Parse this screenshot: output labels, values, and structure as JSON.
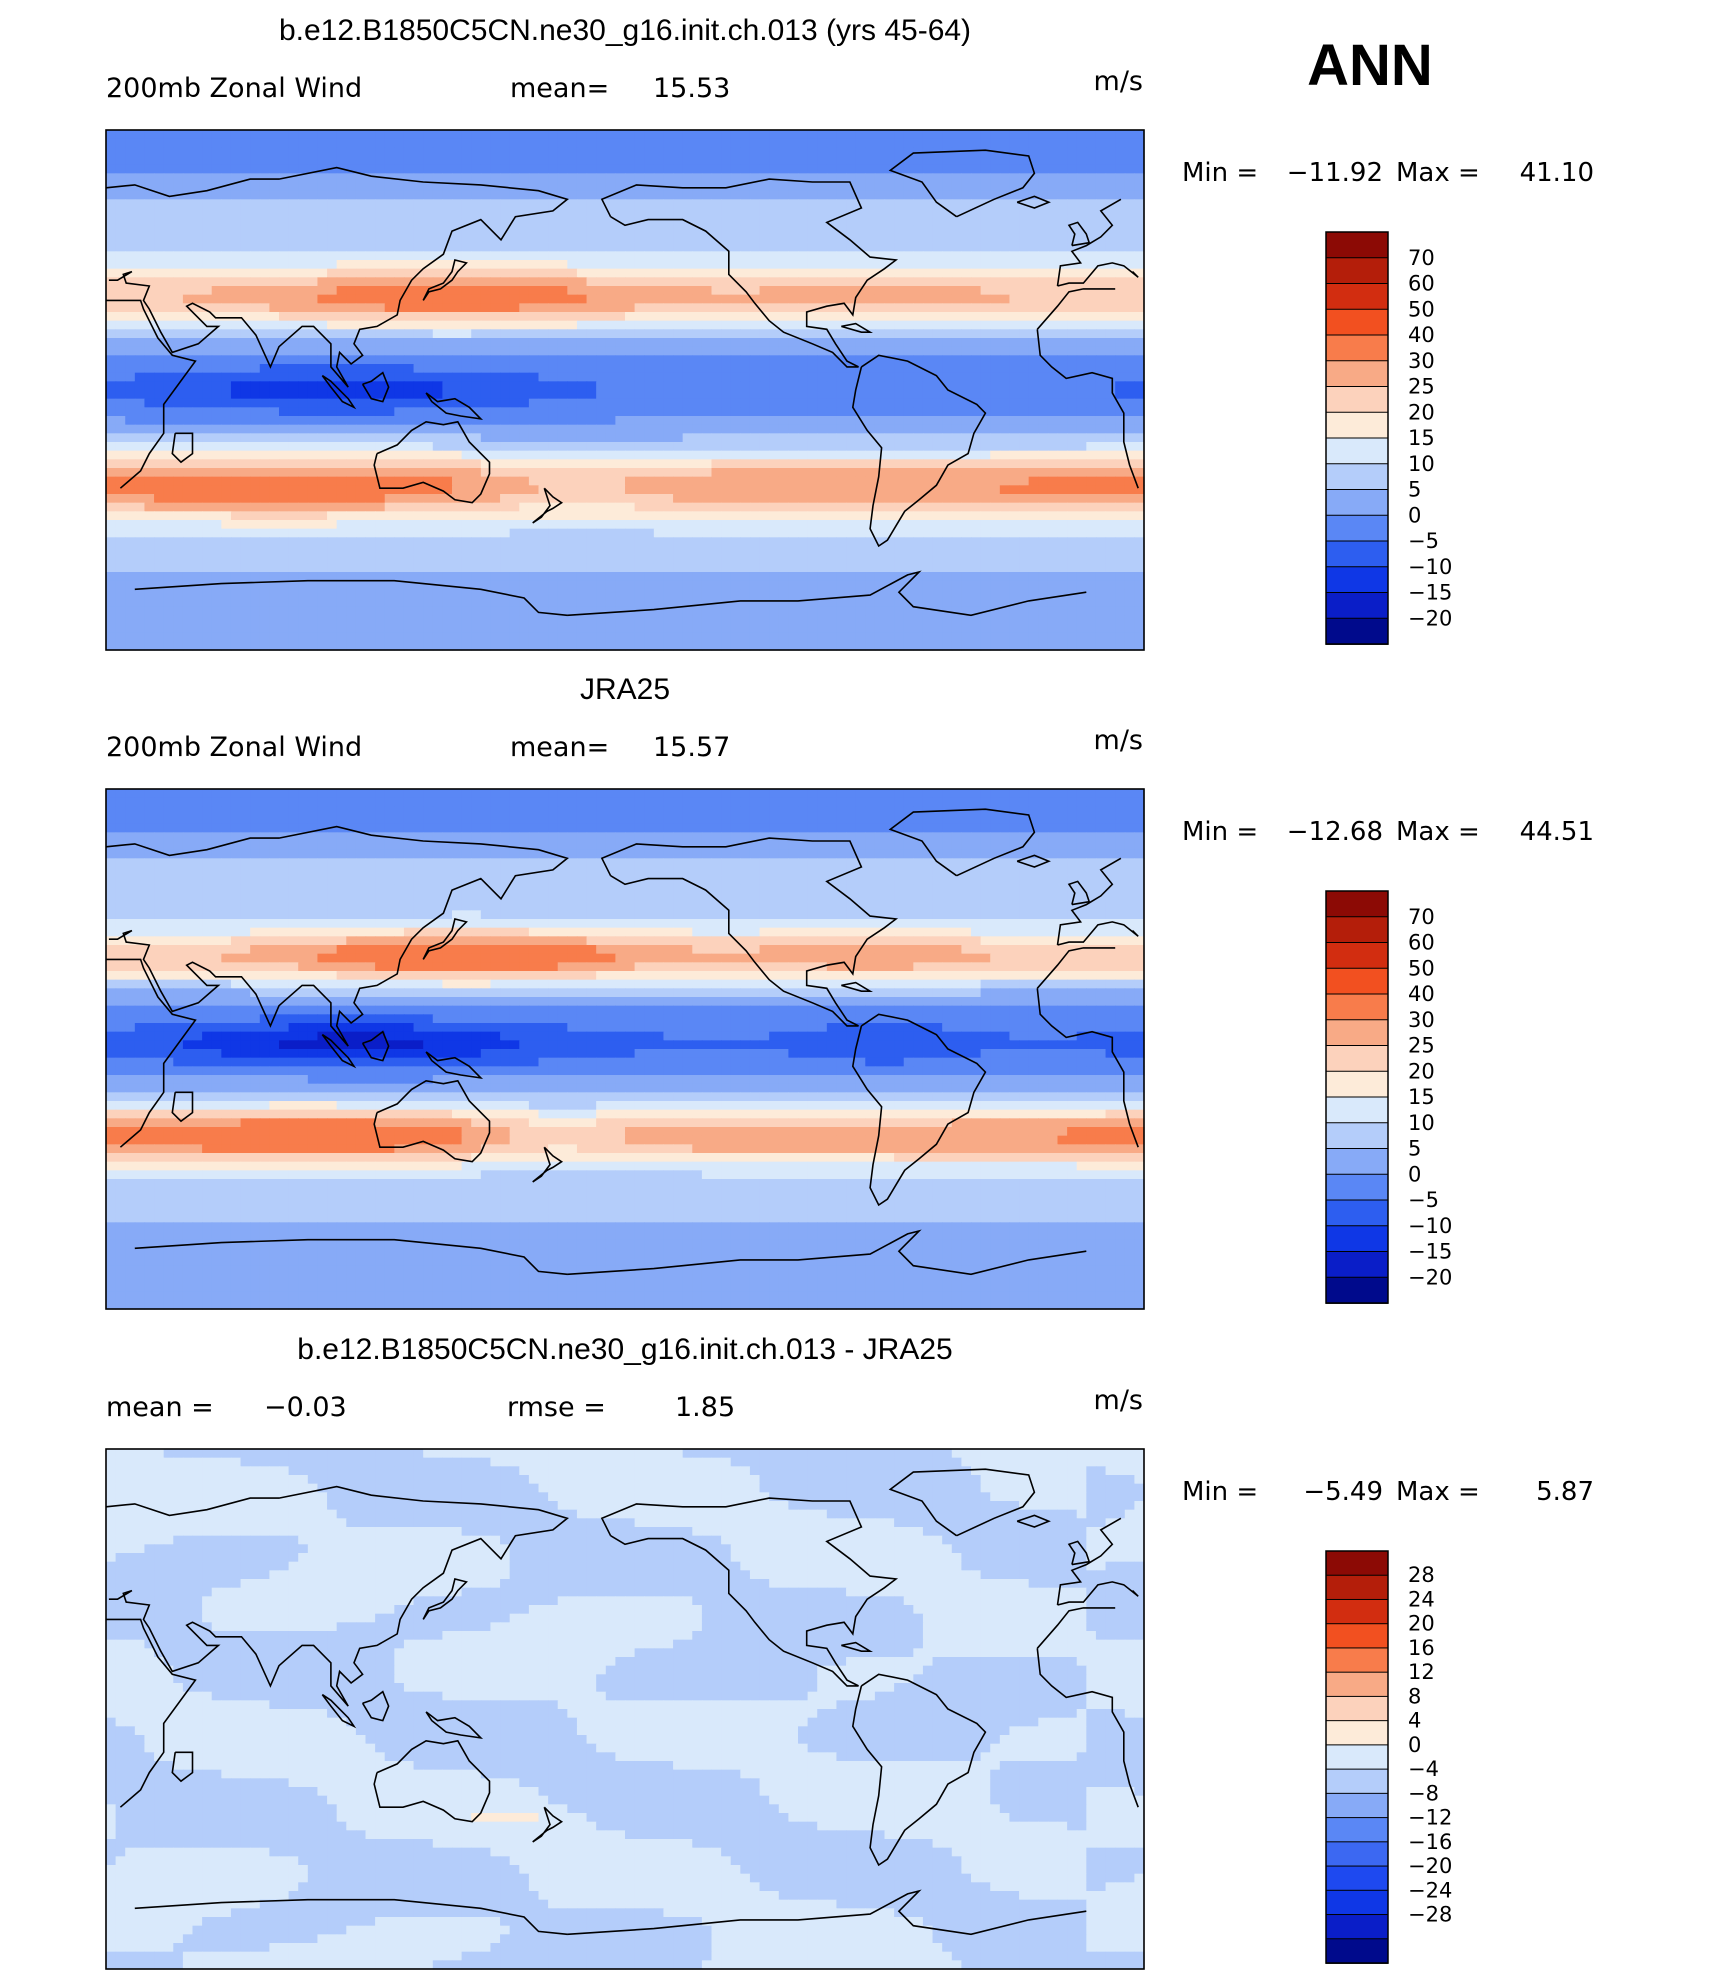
{
  "season": "ANN",
  "colors": {
    "levels14": [
      "#000a8c",
      "#0a1ec8",
      "#0f37e6",
      "#2d5ef0",
      "#5a87f5",
      "#87aaf7",
      "#b4cdfa",
      "#d9e9fb",
      "#fdebd9",
      "#fcd2bc",
      "#f8aa86",
      "#f87c4b",
      "#f25020",
      "#d22d10",
      "#b41e0a",
      "#8c0a05"
    ],
    "levels16": [
      "#000a8c",
      "#0a1ec8",
      "#0f37e6",
      "#1e49f0",
      "#3c68f2",
      "#5a87f5",
      "#87aaf7",
      "#b4cdfa",
      "#d9e9fb",
      "#fdebd9",
      "#fcd2bc",
      "#f8aa86",
      "#f87c4b",
      "#f25020",
      "#d22d10",
      "#b41e0a",
      "#8c0a05"
    ],
    "coast": "#000000"
  },
  "chart_data": [
    {
      "type": "heatmap",
      "title": "b.e12.B1850C5CN.ne30_g16.init.ch.013 (yrs 45-64)",
      "left_label": "200mb  Zonal  Wind",
      "stat_label": "mean=",
      "stat_value": "15.53",
      "units": "m/s",
      "min_label": "Min",
      "min_value": "−11.92",
      "max_label": "Max",
      "max_value": "41.10",
      "color_levels": [
        "70",
        "60",
        "50",
        "40",
        "30",
        "25",
        "20",
        "15",
        "10",
        "5",
        "0",
        "−5",
        "−10",
        "−15",
        "−20"
      ],
      "field": "model"
    },
    {
      "type": "heatmap",
      "title": "JRA25",
      "left_label": "200mb  Zonal  Wind",
      "stat_label": "mean=",
      "stat_value": "15.57",
      "units": "m/s",
      "min_label": "Min",
      "min_value": "−12.68",
      "max_label": "Max",
      "max_value": "44.51",
      "color_levels": [
        "70",
        "60",
        "50",
        "40",
        "30",
        "25",
        "20",
        "15",
        "10",
        "5",
        "0",
        "−5",
        "−10",
        "−15",
        "−20"
      ],
      "field": "obs"
    },
    {
      "type": "heatmap",
      "title": "b.e12.B1850C5CN.ne30_g16.init.ch.013 - JRA25",
      "left_label": "mean  =",
      "left_value": "−0.03",
      "stat_label": "rmse  =",
      "stat_value": "1.85",
      "units": "m/s",
      "min_label": "Min",
      "min_value": "−5.49",
      "max_label": "Max",
      "max_value": "5.87",
      "color_levels": [
        "28",
        "24",
        "20",
        "16",
        "12",
        "8",
        "4",
        "0",
        "−4",
        "−8",
        "−12",
        "−16",
        "−20",
        "−24",
        "−28"
      ],
      "field": "diff"
    }
  ]
}
